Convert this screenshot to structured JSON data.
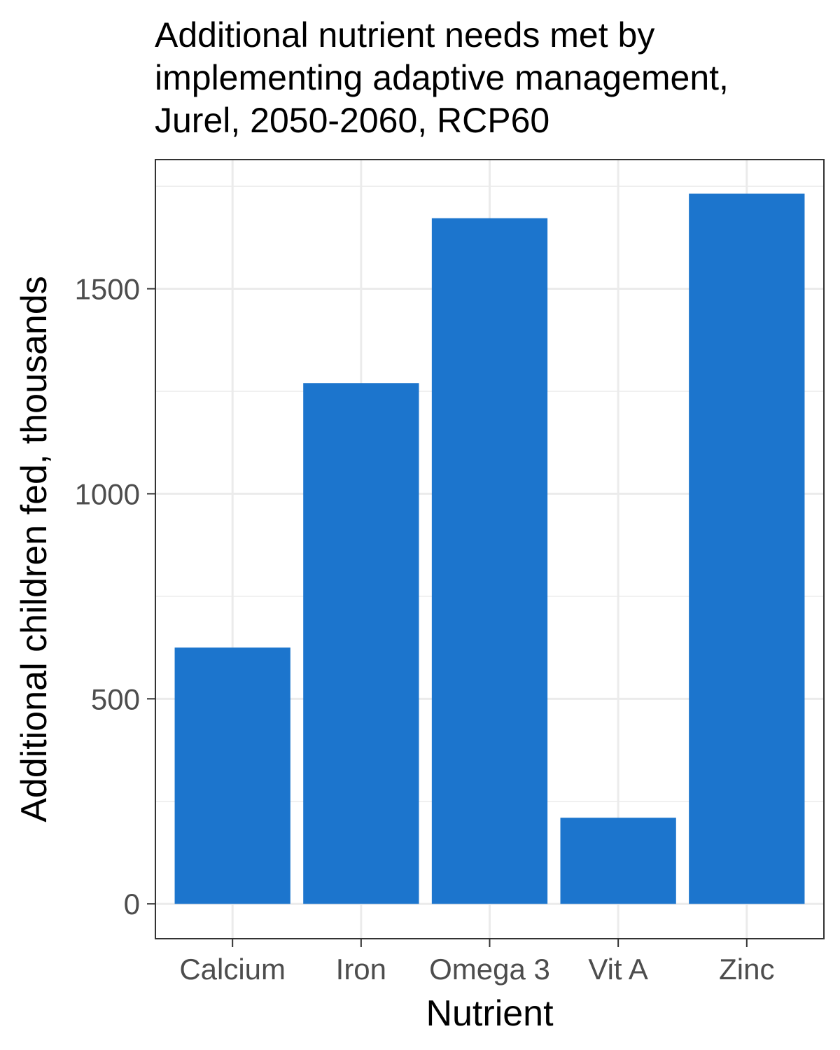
{
  "chart_data": {
    "type": "bar",
    "title_lines": [
      "Additional nutrient needs met by",
      "implementing adaptive management,",
      "Jurel, 2050-2060, RCP60"
    ],
    "xlabel": "Nutrient",
    "ylabel": "Additional children fed, thousands",
    "categories": [
      "Calcium",
      "Iron",
      "Omega 3",
      "Vit A",
      "Zinc"
    ],
    "values": [
      625,
      1270,
      1672,
      210,
      1732
    ],
    "ylim": [
      -85,
      1815
    ],
    "y_ticks": [
      0,
      500,
      1000,
      1500
    ],
    "y_tick_labels": [
      "0",
      "500",
      "1000",
      "1500"
    ],
    "y_minor_ticks": [
      250,
      750,
      1250,
      1750
    ],
    "grid": true,
    "legend": "none",
    "colors": {
      "bar": "#1c75cd",
      "grid": "#ebebeb",
      "panel_border": "#333333",
      "tick_text": "#4d4d4d"
    }
  }
}
